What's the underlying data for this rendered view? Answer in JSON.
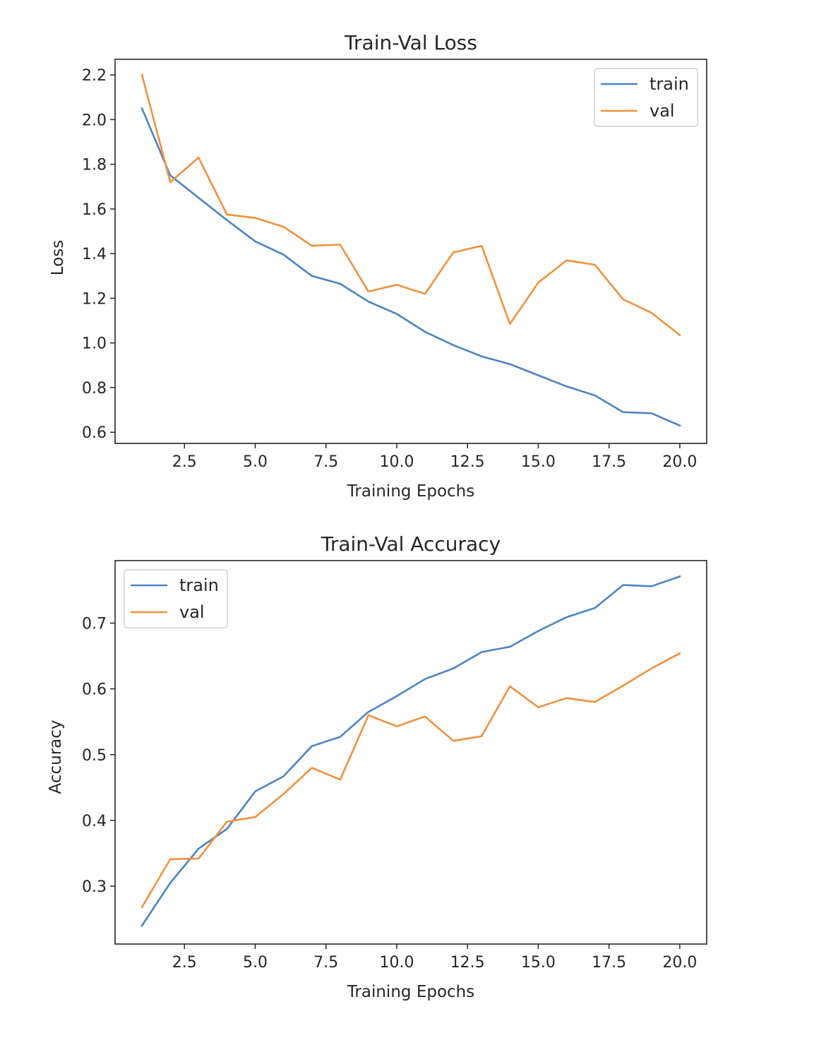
{
  "chart_data": [
    {
      "type": "line",
      "title": "Train-Val Loss",
      "xlabel": "Training Epochs",
      "ylabel": "Loss",
      "xlim": [
        0.05,
        20.95
      ],
      "ylim": [
        0.55,
        2.27
      ],
      "xticks": [
        2.5,
        5.0,
        7.5,
        10.0,
        12.5,
        15.0,
        17.5,
        20.0
      ],
      "xtick_labels": [
        "2.5",
        "5.0",
        "7.5",
        "10.0",
        "12.5",
        "15.0",
        "17.5",
        "20.0"
      ],
      "yticks": [
        0.6,
        0.8,
        1.0,
        1.2,
        1.4,
        1.6,
        1.8,
        2.0,
        2.2
      ],
      "ytick_labels": [
        "0.6",
        "0.8",
        "1.0",
        "1.2",
        "1.4",
        "1.6",
        "1.8",
        "2.0",
        "2.2"
      ],
      "grid": false,
      "legend_position": "top-right",
      "x": [
        1,
        2,
        3,
        4,
        5,
        6,
        7,
        8,
        9,
        10,
        11,
        12,
        13,
        14,
        15,
        16,
        17,
        18,
        19,
        20
      ],
      "series": [
        {
          "name": "train",
          "color": "#4c84c4",
          "values": [
            2.05,
            1.75,
            1.65,
            1.55,
            1.455,
            1.395,
            1.3,
            1.265,
            1.185,
            1.13,
            1.05,
            0.99,
            0.94,
            0.905,
            0.855,
            0.805,
            0.765,
            0.69,
            0.685,
            0.63
          ]
        },
        {
          "name": "val",
          "color": "#f0913e",
          "values": [
            2.2,
            1.72,
            1.83,
            1.575,
            1.56,
            1.52,
            1.435,
            1.44,
            1.23,
            1.26,
            1.22,
            1.405,
            1.435,
            1.085,
            1.27,
            1.37,
            1.35,
            1.195,
            1.135,
            1.035
          ]
        }
      ]
    },
    {
      "type": "line",
      "title": "Train-Val Accuracy",
      "xlabel": "Training Epochs",
      "ylabel": "Accuracy",
      "xlim": [
        0.05,
        20.95
      ],
      "ylim": [
        0.212,
        0.795
      ],
      "xticks": [
        2.5,
        5.0,
        7.5,
        10.0,
        12.5,
        15.0,
        17.5,
        20.0
      ],
      "xtick_labels": [
        "2.5",
        "5.0",
        "7.5",
        "10.0",
        "12.5",
        "15.0",
        "17.5",
        "20.0"
      ],
      "yticks": [
        0.3,
        0.4,
        0.5,
        0.6,
        0.7
      ],
      "ytick_labels": [
        "0.3",
        "0.4",
        "0.5",
        "0.6",
        "0.7"
      ],
      "grid": false,
      "legend_position": "top-left",
      "x": [
        1,
        2,
        3,
        4,
        5,
        6,
        7,
        8,
        9,
        10,
        11,
        12,
        13,
        14,
        15,
        16,
        17,
        18,
        19,
        20
      ],
      "series": [
        {
          "name": "train",
          "color": "#4c84c4",
          "values": [
            0.24,
            0.305,
            0.357,
            0.387,
            0.444,
            0.467,
            0.513,
            0.527,
            0.565,
            0.589,
            0.615,
            0.631,
            0.656,
            0.664,
            0.688,
            0.709,
            0.723,
            0.758,
            0.756,
            0.771
          ]
        },
        {
          "name": "val",
          "color": "#f0913e",
          "values": [
            0.268,
            0.341,
            0.342,
            0.398,
            0.405,
            0.44,
            0.48,
            0.462,
            0.56,
            0.543,
            0.558,
            0.521,
            0.528,
            0.604,
            0.572,
            0.586,
            0.58,
            0.605,
            0.631,
            0.654
          ]
        }
      ]
    }
  ]
}
